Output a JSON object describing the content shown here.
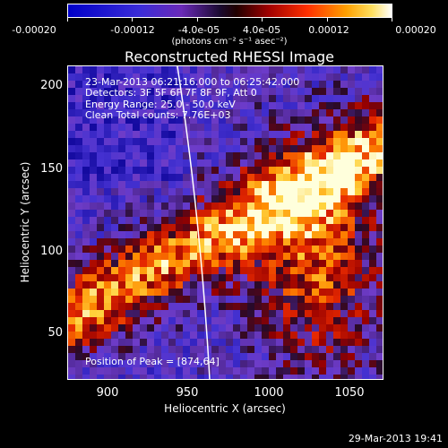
{
  "colorbar": {
    "tick_labels": [
      "-0.00020",
      "-0.00012",
      "-4.0e-05",
      "4.0e-05",
      "0.00012",
      "0.00020"
    ],
    "unit_label": "(photons cm⁻² s⁻¹ asec⁻²)"
  },
  "plot": {
    "title": "Reconstructed RHESSI Image",
    "xlabel": "Heliocentric X (arcsec)",
    "ylabel": "Heliocentric Y (arcsec)",
    "xticks": [
      "900",
      "950",
      "1000",
      "1050"
    ],
    "yticks": [
      "200",
      "150",
      "100",
      "50"
    ],
    "annotation": {
      "line1": "23-Mar-2013 06:21:16.000 to 06:25:42.000",
      "line2": "Detectors: 3F 5F 6F 7F 8F 9F, Att 0",
      "line3": "Energy Range: 25.0 - 50.0 keV",
      "line4": "Clean     Total counts: 7.76E+03"
    },
    "peak_label": "Position of Peak = [874,64]"
  },
  "footer": {
    "timestamp": "29-Mar-2013 19:41"
  },
  "colors": {
    "background": "#000000",
    "foreground": "#ffffff"
  }
}
